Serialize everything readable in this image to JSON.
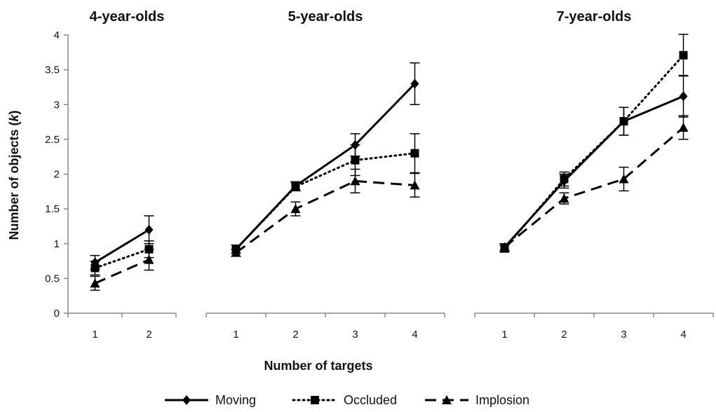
{
  "chart_data": {
    "type": "line",
    "ylabel_pre": "Number of objects (",
    "ylabel_k": "k",
    "ylabel_post": ")",
    "xlabel": "Number of targets",
    "ylim": [
      0,
      4
    ],
    "yticks": [
      "0",
      "0.5",
      "1",
      "1.5",
      "2",
      "2.5",
      "3",
      "3.5",
      "4"
    ],
    "grid": false,
    "legend_position": "bottom",
    "legend": [
      {
        "name": "Moving",
        "style": "solid",
        "marker": "diamond"
      },
      {
        "name": "Occluded",
        "style": "dotted",
        "marker": "square"
      },
      {
        "name": "Implosion",
        "style": "dashed",
        "marker": "triangle"
      }
    ],
    "panels": [
      {
        "title": "4-year-olds",
        "categories": [
          "1",
          "2"
        ],
        "series": [
          {
            "name": "Moving",
            "values": [
              0.73,
              1.2
            ],
            "errors": [
              0.1,
              0.2
            ]
          },
          {
            "name": "Occluded",
            "values": [
              0.65,
              0.92
            ],
            "errors": [
              0.1,
              0.12
            ]
          },
          {
            "name": "Implosion",
            "values": [
              0.43,
              0.77
            ],
            "errors": [
              0.1,
              0.15
            ]
          }
        ]
      },
      {
        "title": "5-year-olds",
        "categories": [
          "1",
          "2",
          "3",
          "4"
        ],
        "series": [
          {
            "name": "Moving",
            "values": [
              0.92,
              1.83,
              2.42,
              3.3
            ],
            "errors": [
              0.06,
              0.06,
              0.16,
              0.3
            ]
          },
          {
            "name": "Occluded",
            "values": [
              0.92,
              1.82,
              2.2,
              2.3
            ],
            "errors": [
              0.06,
              0.06,
              0.22,
              0.28
            ]
          },
          {
            "name": "Implosion",
            "values": [
              0.87,
              1.5,
              1.9,
              1.84
            ],
            "errors": [
              0.05,
              0.1,
              0.17,
              0.17
            ]
          }
        ]
      },
      {
        "title": "7-year-olds",
        "categories": [
          "1",
          "2",
          "3",
          "4"
        ],
        "series": [
          {
            "name": "Moving",
            "values": [
              0.95,
              1.9,
              2.76,
              3.12
            ],
            "errors": [
              0.05,
              0.1,
              0.2,
              0.3
            ]
          },
          {
            "name": "Occluded",
            "values": [
              0.93,
              1.93,
              2.76,
              3.71
            ],
            "errors": [
              0.05,
              0.1,
              0.2,
              0.3
            ]
          },
          {
            "name": "Implosion",
            "values": [
              0.95,
              1.65,
              1.93,
              2.67
            ],
            "errors": [
              0.05,
              0.08,
              0.17,
              0.17
            ]
          }
        ]
      }
    ]
  }
}
